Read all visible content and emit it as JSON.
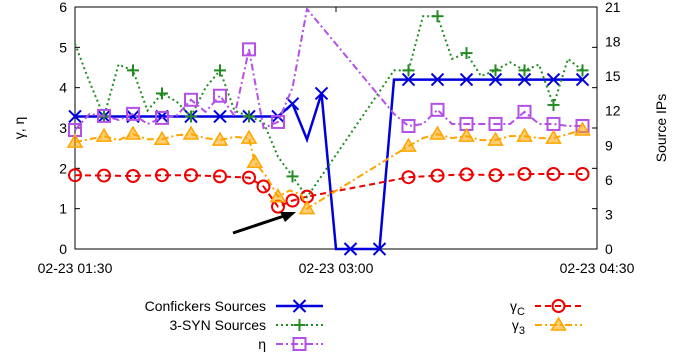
{
  "chart_data": {
    "type": "line",
    "x_ticks": [
      "02-23 01:30",
      "02-23 03:00",
      "02-23 04:30"
    ],
    "x_range": [
      "02-23 01:30",
      "02-23 04:30"
    ],
    "left_axis": {
      "label": "γ, η",
      "range": [
        0,
        6
      ],
      "ticks": [
        "0",
        "1",
        "2",
        "3",
        "4",
        "5",
        "6"
      ]
    },
    "right_axis": {
      "label": "Source IPs",
      "range": [
        0,
        21
      ],
      "ticks": [
        "0",
        "3",
        "6",
        "9",
        "12",
        "15",
        "18",
        "21"
      ]
    },
    "grid": false,
    "legend_position": "bottom",
    "annotation": "arrow pointing to the dip in γ values around 02-23 02:50",
    "series": [
      {
        "name": "Confickers Sources",
        "axis": "right",
        "color": "#0000dd",
        "style": "solid",
        "marker": "x",
        "points": [
          {
            "t": 0,
            "v": 11.5,
            "m": true
          },
          {
            "t": 10,
            "v": 11.5,
            "m": true
          },
          {
            "t": 20,
            "v": 11.5,
            "m": true
          },
          {
            "t": 30,
            "v": 11.5,
            "m": true
          },
          {
            "t": 40,
            "v": 11.5,
            "m": true
          },
          {
            "t": 50,
            "v": 11.5,
            "m": true
          },
          {
            "t": 60,
            "v": 11.5,
            "m": true
          },
          {
            "t": 70,
            "v": 11.5,
            "m": true
          },
          {
            "t": 75,
            "v": 12.6,
            "m": true
          },
          {
            "t": 80,
            "v": 9.5,
            "m": false
          },
          {
            "t": 85,
            "v": 13.5,
            "m": true
          },
          {
            "t": 90,
            "v": 0,
            "m": false
          },
          {
            "t": 95,
            "v": 0,
            "m": true
          },
          {
            "t": 105,
            "v": 0,
            "m": true
          },
          {
            "t": 110,
            "v": 14.7,
            "m": false
          },
          {
            "t": 115,
            "v": 14.7,
            "m": true
          },
          {
            "t": 125,
            "v": 14.7,
            "m": true
          },
          {
            "t": 135,
            "v": 14.7,
            "m": true
          },
          {
            "t": 145,
            "v": 14.7,
            "m": true
          },
          {
            "t": 155,
            "v": 14.7,
            "m": true
          },
          {
            "t": 165,
            "v": 14.7,
            "m": true
          },
          {
            "t": 175,
            "v": 14.7,
            "m": true
          }
        ]
      },
      {
        "name": "3-SYN Sources",
        "axis": "right",
        "color": "#228b22",
        "style": "dotted",
        "marker": "plus",
        "points": [
          {
            "t": 0,
            "v": 17.8,
            "m": false
          },
          {
            "t": 5,
            "v": 14.5,
            "m": false
          },
          {
            "t": 10,
            "v": 11.5,
            "m": true
          },
          {
            "t": 15,
            "v": 16.0,
            "m": false
          },
          {
            "t": 20,
            "v": 15.5,
            "m": true
          },
          {
            "t": 25,
            "v": 12.0,
            "m": false
          },
          {
            "t": 30,
            "v": 13.5,
            "m": true
          },
          {
            "t": 35,
            "v": 12.8,
            "m": false
          },
          {
            "t": 40,
            "v": 11.5,
            "m": true
          },
          {
            "t": 45,
            "v": 14.0,
            "m": false
          },
          {
            "t": 50,
            "v": 15.5,
            "m": true
          },
          {
            "t": 55,
            "v": 12.0,
            "m": false
          },
          {
            "t": 60,
            "v": 11.5,
            "m": true
          },
          {
            "t": 65,
            "v": 11.0,
            "m": false
          },
          {
            "t": 70,
            "v": 8.0,
            "m": false
          },
          {
            "t": 75,
            "v": 6.3,
            "m": true
          },
          {
            "t": 80,
            "v": 4.5,
            "m": false
          },
          {
            "t": 110,
            "v": 15.5,
            "m": false
          },
          {
            "t": 115,
            "v": 15.5,
            "m": true
          },
          {
            "t": 120,
            "v": 20.2,
            "m": false
          },
          {
            "t": 125,
            "v": 20.2,
            "m": true
          },
          {
            "t": 130,
            "v": 16.5,
            "m": false
          },
          {
            "t": 135,
            "v": 17.0,
            "m": true
          },
          {
            "t": 140,
            "v": 15.0,
            "m": false
          },
          {
            "t": 145,
            "v": 15.5,
            "m": true
          },
          {
            "t": 150,
            "v": 16.2,
            "m": false
          },
          {
            "t": 155,
            "v": 15.5,
            "m": true
          },
          {
            "t": 160,
            "v": 16.0,
            "m": false
          },
          {
            "t": 165,
            "v": 12.5,
            "m": true
          },
          {
            "t": 170,
            "v": 16.5,
            "m": false
          },
          {
            "t": 175,
            "v": 15.5,
            "m": true
          }
        ]
      },
      {
        "name": "η",
        "axis": "left",
        "color": "#b450e6",
        "style": "dashdot",
        "marker": "square",
        "points": [
          {
            "t": 0,
            "v": 2.95,
            "m": true
          },
          {
            "t": 5,
            "v": 3.35,
            "m": false
          },
          {
            "t": 10,
            "v": 3.3,
            "m": true
          },
          {
            "t": 15,
            "v": 3.2,
            "m": false
          },
          {
            "t": 20,
            "v": 3.35,
            "m": true
          },
          {
            "t": 25,
            "v": 3.1,
            "m": false
          },
          {
            "t": 30,
            "v": 3.25,
            "m": true
          },
          {
            "t": 35,
            "v": 3.3,
            "m": false
          },
          {
            "t": 40,
            "v": 3.7,
            "m": true
          },
          {
            "t": 45,
            "v": 3.4,
            "m": false
          },
          {
            "t": 50,
            "v": 3.8,
            "m": true
          },
          {
            "t": 55,
            "v": 3.3,
            "m": false
          },
          {
            "t": 60,
            "v": 4.95,
            "m": true
          },
          {
            "t": 65,
            "v": 3.0,
            "m": false
          },
          {
            "t": 70,
            "v": 3.15,
            "m": true
          },
          {
            "t": 75,
            "v": 4.0,
            "m": false
          },
          {
            "t": 80,
            "v": 5.95,
            "m": false
          },
          {
            "t": 110,
            "v": 3.35,
            "m": false
          },
          {
            "t": 115,
            "v": 3.05,
            "m": true
          },
          {
            "t": 120,
            "v": 3.1,
            "m": false
          },
          {
            "t": 125,
            "v": 3.45,
            "m": true
          },
          {
            "t": 130,
            "v": 3.1,
            "m": false
          },
          {
            "t": 135,
            "v": 3.1,
            "m": true
          },
          {
            "t": 140,
            "v": 3.1,
            "m": false
          },
          {
            "t": 145,
            "v": 3.1,
            "m": true
          },
          {
            "t": 150,
            "v": 3.1,
            "m": false
          },
          {
            "t": 155,
            "v": 3.4,
            "m": true
          },
          {
            "t": 160,
            "v": 3.1,
            "m": false
          },
          {
            "t": 165,
            "v": 3.1,
            "m": true
          },
          {
            "t": 170,
            "v": 3.05,
            "m": false
          },
          {
            "t": 175,
            "v": 3.05,
            "m": true
          }
        ]
      },
      {
        "name": "γ",
        "sub": "C",
        "axis": "left",
        "color": "#ee0000",
        "style": "dashed",
        "marker": "circle",
        "points": [
          {
            "t": 0,
            "v": 1.83,
            "m": true
          },
          {
            "t": 10,
            "v": 1.82,
            "m": true
          },
          {
            "t": 20,
            "v": 1.81,
            "m": true
          },
          {
            "t": 30,
            "v": 1.83,
            "m": true
          },
          {
            "t": 40,
            "v": 1.83,
            "m": true
          },
          {
            "t": 50,
            "v": 1.8,
            "m": true
          },
          {
            "t": 60,
            "v": 1.77,
            "m": true
          },
          {
            "t": 65,
            "v": 1.55,
            "m": true
          },
          {
            "t": 70,
            "v": 1.05,
            "m": true
          },
          {
            "t": 75,
            "v": 1.2,
            "m": true
          },
          {
            "t": 80,
            "v": 1.3,
            "m": true
          },
          {
            "t": 115,
            "v": 1.78,
            "m": true
          },
          {
            "t": 125,
            "v": 1.82,
            "m": true
          },
          {
            "t": 135,
            "v": 1.85,
            "m": true
          },
          {
            "t": 145,
            "v": 1.83,
            "m": true
          },
          {
            "t": 155,
            "v": 1.86,
            "m": true
          },
          {
            "t": 165,
            "v": 1.86,
            "m": true
          },
          {
            "t": 175,
            "v": 1.86,
            "m": true
          }
        ]
      },
      {
        "name": "γ",
        "sub": "3",
        "axis": "left",
        "color": "#ffa500",
        "style": "dashdot",
        "marker": "triangle",
        "points": [
          {
            "t": 0,
            "v": 2.65,
            "m": true
          },
          {
            "t": 5,
            "v": 2.72,
            "m": false
          },
          {
            "t": 10,
            "v": 2.8,
            "m": true
          },
          {
            "t": 15,
            "v": 2.7,
            "m": false
          },
          {
            "t": 20,
            "v": 2.85,
            "m": true
          },
          {
            "t": 25,
            "v": 2.72,
            "m": false
          },
          {
            "t": 30,
            "v": 2.72,
            "m": true
          },
          {
            "t": 35,
            "v": 2.82,
            "m": false
          },
          {
            "t": 40,
            "v": 2.85,
            "m": true
          },
          {
            "t": 45,
            "v": 2.75,
            "m": false
          },
          {
            "t": 50,
            "v": 2.7,
            "m": true
          },
          {
            "t": 55,
            "v": 2.78,
            "m": false
          },
          {
            "t": 60,
            "v": 2.75,
            "m": true
          },
          {
            "t": 62,
            "v": 2.15,
            "m": true
          },
          {
            "t": 66,
            "v": 1.8,
            "m": false
          },
          {
            "t": 70,
            "v": 1.3,
            "m": true
          },
          {
            "t": 74,
            "v": 1.45,
            "m": false
          },
          {
            "t": 78,
            "v": 1.35,
            "m": false
          },
          {
            "t": 80,
            "v": 1.0,
            "m": true
          },
          {
            "t": 115,
            "v": 2.55,
            "m": true
          },
          {
            "t": 120,
            "v": 2.75,
            "m": false
          },
          {
            "t": 125,
            "v": 2.85,
            "m": true
          },
          {
            "t": 130,
            "v": 2.75,
            "m": false
          },
          {
            "t": 135,
            "v": 2.8,
            "m": true
          },
          {
            "t": 140,
            "v": 2.7,
            "m": false
          },
          {
            "t": 145,
            "v": 2.7,
            "m": true
          },
          {
            "t": 150,
            "v": 2.8,
            "m": false
          },
          {
            "t": 155,
            "v": 2.8,
            "m": true
          },
          {
            "t": 160,
            "v": 2.75,
            "m": false
          },
          {
            "t": 165,
            "v": 2.75,
            "m": true
          },
          {
            "t": 170,
            "v": 2.85,
            "m": false
          },
          {
            "t": 175,
            "v": 2.95,
            "m": true
          }
        ]
      }
    ]
  }
}
